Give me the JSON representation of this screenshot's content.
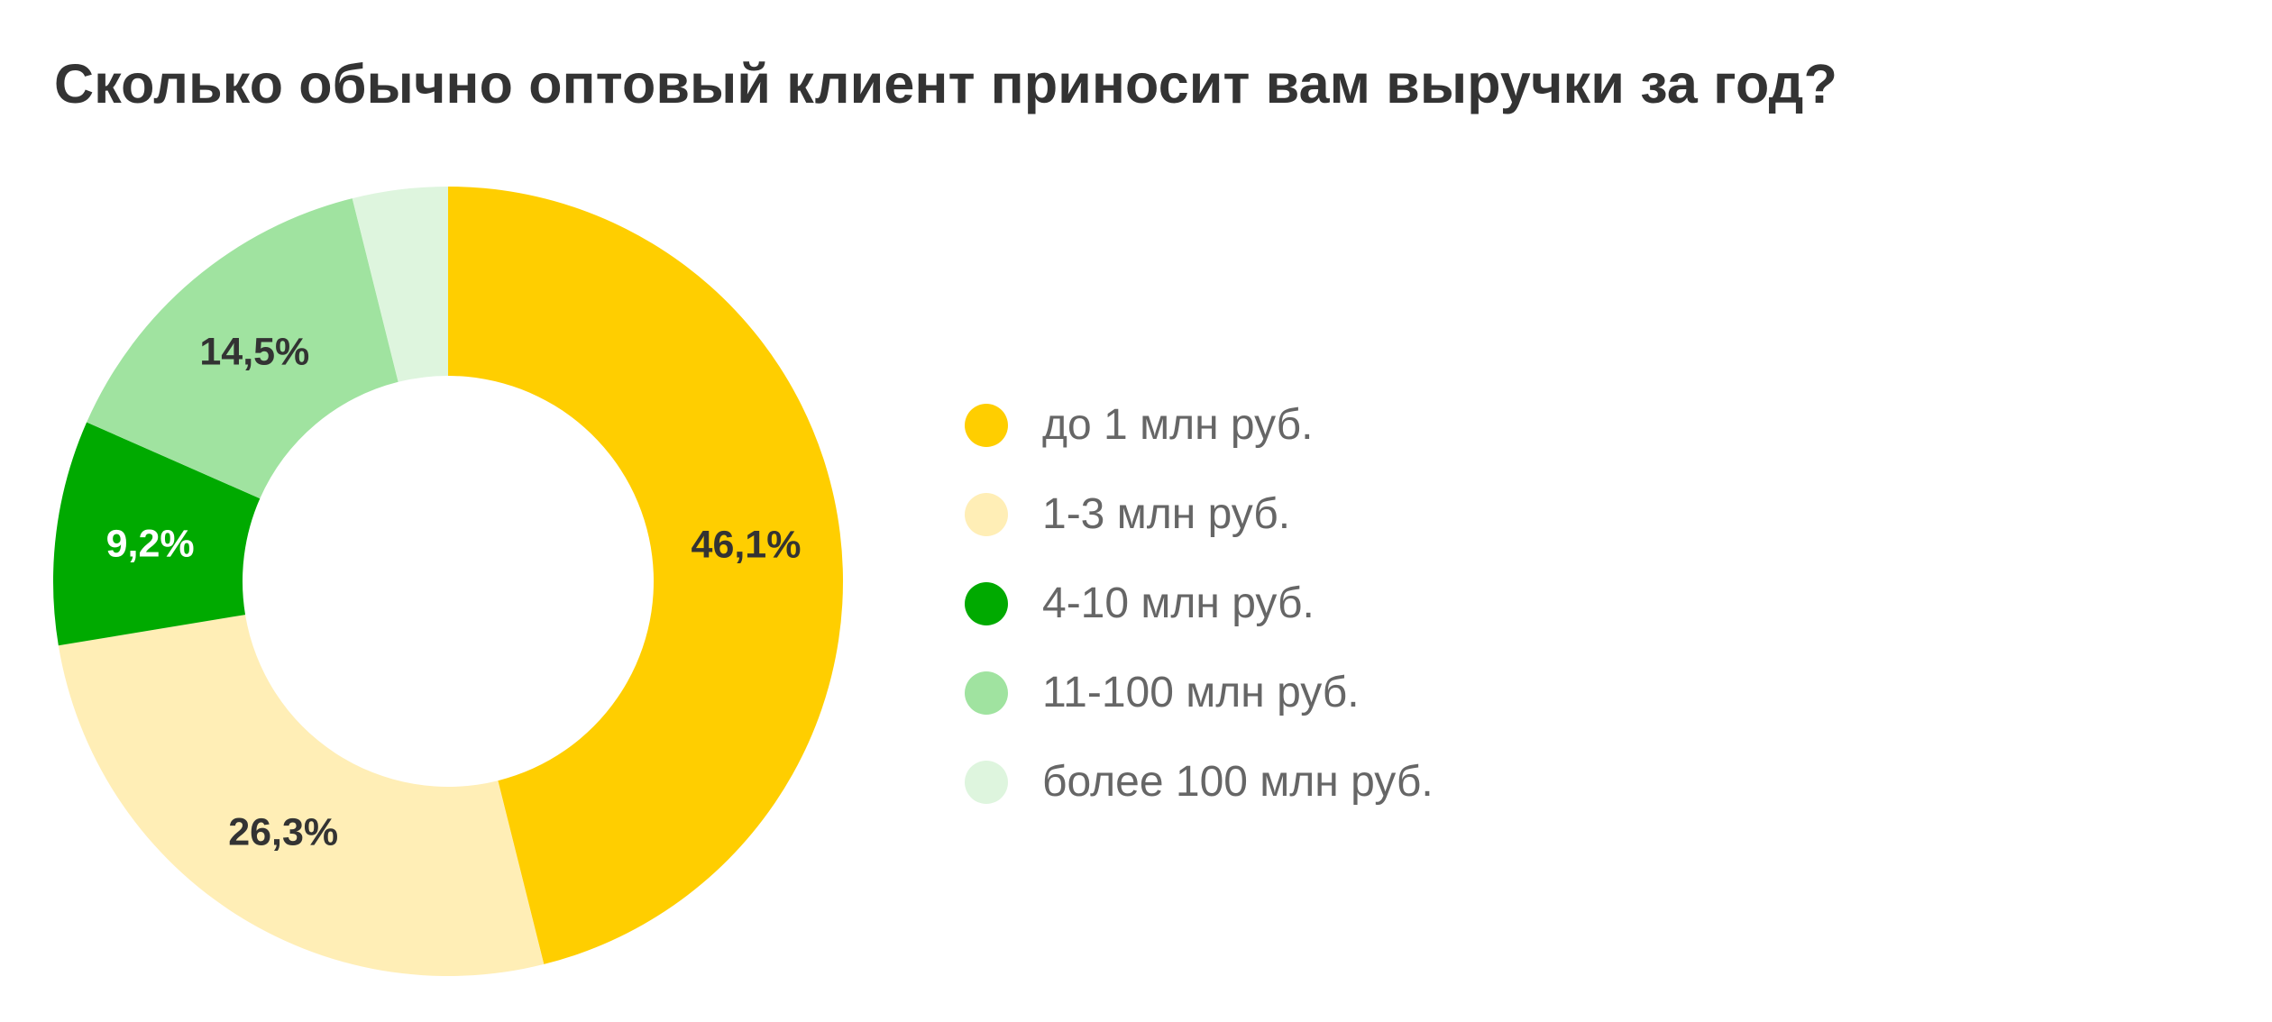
{
  "chart_data": {
    "type": "pie",
    "donut": true,
    "title": "Сколько обычно оптовый клиент приносит вам выручки за год?",
    "categories": [
      "до 1 млн руб.",
      "1-3 млн руб.",
      "4-10 млн руб.",
      "11-100 млн руб.",
      "более 100 млн руб."
    ],
    "values": [
      46.1,
      26.3,
      9.2,
      14.5,
      3.9
    ],
    "data_labels": [
      "46,1%",
      "26,3%",
      "9,2%",
      "14,5%",
      ""
    ],
    "colors": [
      "#FFCE00",
      "#FFEEB6",
      "#00AA00",
      "#A0E3A0",
      "#DEF5DE"
    ],
    "label_colors": [
      "#333333",
      "#333333",
      "#ffffff",
      "#333333",
      "#333333"
    ],
    "legend_position": "right"
  }
}
